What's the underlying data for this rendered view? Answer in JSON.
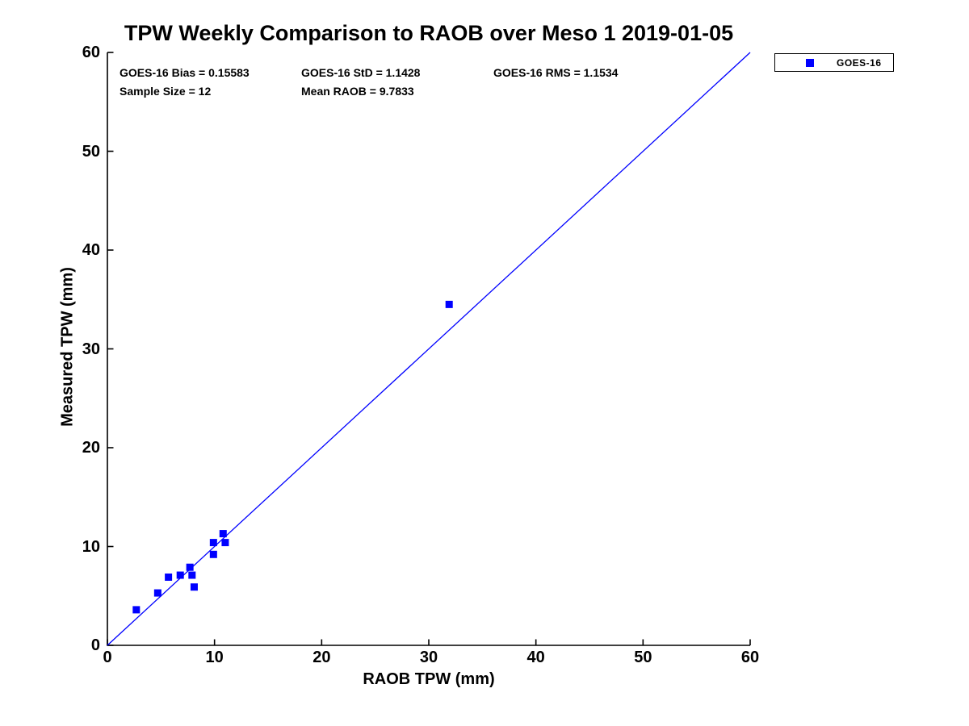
{
  "chart_data": {
    "type": "scatter",
    "title": "TPW Weekly Comparison to RAOB over Meso 1 2019-01-05",
    "xlabel": "RAOB TPW (mm)",
    "ylabel": "Measured TPW (mm)",
    "xlim": [
      0,
      60
    ],
    "ylim": [
      0,
      60
    ],
    "xticks": [
      0,
      10,
      20,
      30,
      40,
      50,
      60
    ],
    "yticks": [
      0,
      10,
      20,
      30,
      40,
      50,
      60
    ],
    "grid": false,
    "axis_color": "#000000",
    "background_color": "#ffffff",
    "stats": {
      "bias": "GOES-16 Bias = 0.15583",
      "std": "GOES-16 StD = 1.1428",
      "rms": "GOES-16 RMS = 1.1534",
      "sample_size": "Sample Size = 12",
      "mean_raob": "Mean RAOB = 9.7833"
    },
    "legend": {
      "label": "GOES-16",
      "position": "outside-top-right",
      "marker": "square",
      "color": "#0000ff"
    },
    "series": [
      {
        "name": "GOES-16",
        "type": "scatter",
        "marker": "square",
        "color": "#0000ff",
        "points": [
          [
            2.7,
            3.6
          ],
          [
            4.7,
            5.3
          ],
          [
            5.7,
            6.9
          ],
          [
            6.8,
            7.1
          ],
          [
            7.7,
            7.9
          ],
          [
            7.9,
            7.1
          ],
          [
            8.1,
            5.9
          ],
          [
            9.9,
            9.2
          ],
          [
            9.9,
            10.4
          ],
          [
            10.8,
            11.3
          ],
          [
            11.0,
            10.4
          ],
          [
            31.9,
            34.5
          ]
        ]
      }
    ],
    "ref_line": {
      "x": [
        0,
        60
      ],
      "y": [
        0,
        60
      ],
      "color": "#0000ff"
    }
  }
}
